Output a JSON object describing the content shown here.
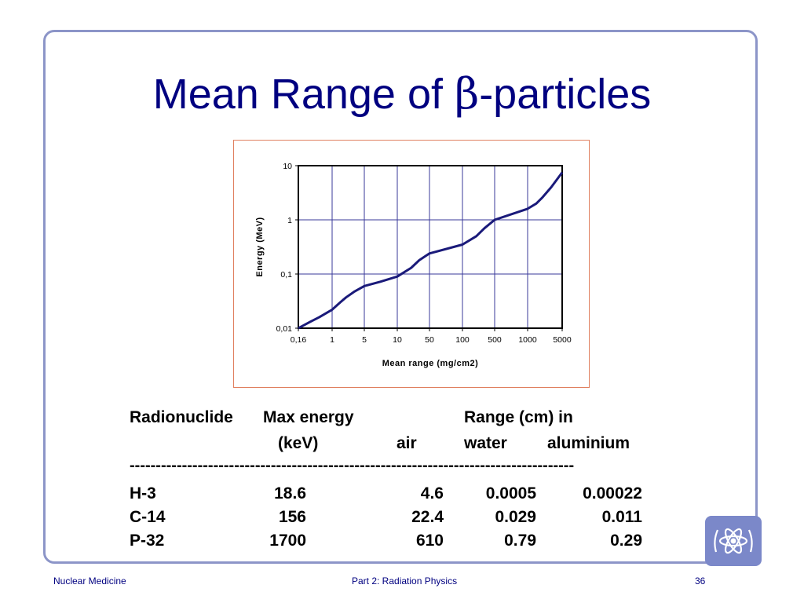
{
  "slide": {
    "title": "Mean Range of ",
    "title_symbol": "β",
    "title_suffix": "-particles",
    "footer_left": "Nuclear Medicine",
    "footer_center": "Part 2: Radiation Physics",
    "page_number": "36"
  },
  "colors": {
    "title": "#000080",
    "frame": "#8c95c8",
    "curve": "#1a1a7a",
    "chart_border": "#e08060",
    "logo": "#7b88c9"
  },
  "chart_data": {
    "type": "line",
    "xlabel": "Mean range (mg/cm2)",
    "ylabel": "Energy (MeV)",
    "x_scale": "log",
    "y_scale": "log",
    "xlim": [
      0.16,
      5000
    ],
    "ylim": [
      0.01,
      10
    ],
    "x_ticks": [
      "0,16",
      "1",
      "5",
      "10",
      "50",
      "100",
      "500",
      "1000",
      "5000"
    ],
    "y_ticks": [
      "0,01",
      "0,1",
      "1",
      "10"
    ],
    "grid": true,
    "series": [
      {
        "x": [
          0.16,
          0.3,
          0.5,
          1,
          1.5,
          2,
          3,
          5,
          7,
          10,
          20,
          30,
          50,
          100,
          200,
          300,
          500,
          1000,
          1500,
          2000,
          3000,
          5000
        ],
        "y": [
          0.01,
          0.013,
          0.016,
          0.022,
          0.03,
          0.037,
          0.047,
          0.06,
          0.072,
          0.09,
          0.13,
          0.18,
          0.24,
          0.35,
          0.5,
          0.7,
          1.0,
          1.6,
          2.0,
          2.6,
          4.0,
          7.5
        ]
      }
    ]
  },
  "table": {
    "header1": [
      "Radionuclide",
      "Max energy",
      "Range (cm) in"
    ],
    "header2": [
      "(keV)",
      "air",
      "water",
      "aluminium"
    ],
    "rule": "-------------------------------------------------------------------------------------",
    "rows": [
      {
        "nuclide": "H-3",
        "energy": "18.6",
        "air": "4.6",
        "water": "0.0005",
        "al": "0.00022"
      },
      {
        "nuclide": "C-14",
        "energy": "156",
        "air": "22.4",
        "water": "0.029",
        "al": "0.011"
      },
      {
        "nuclide": "P-32",
        "energy": "1700",
        "air": "610",
        "water": "0.79",
        "al": "0.29"
      }
    ]
  }
}
